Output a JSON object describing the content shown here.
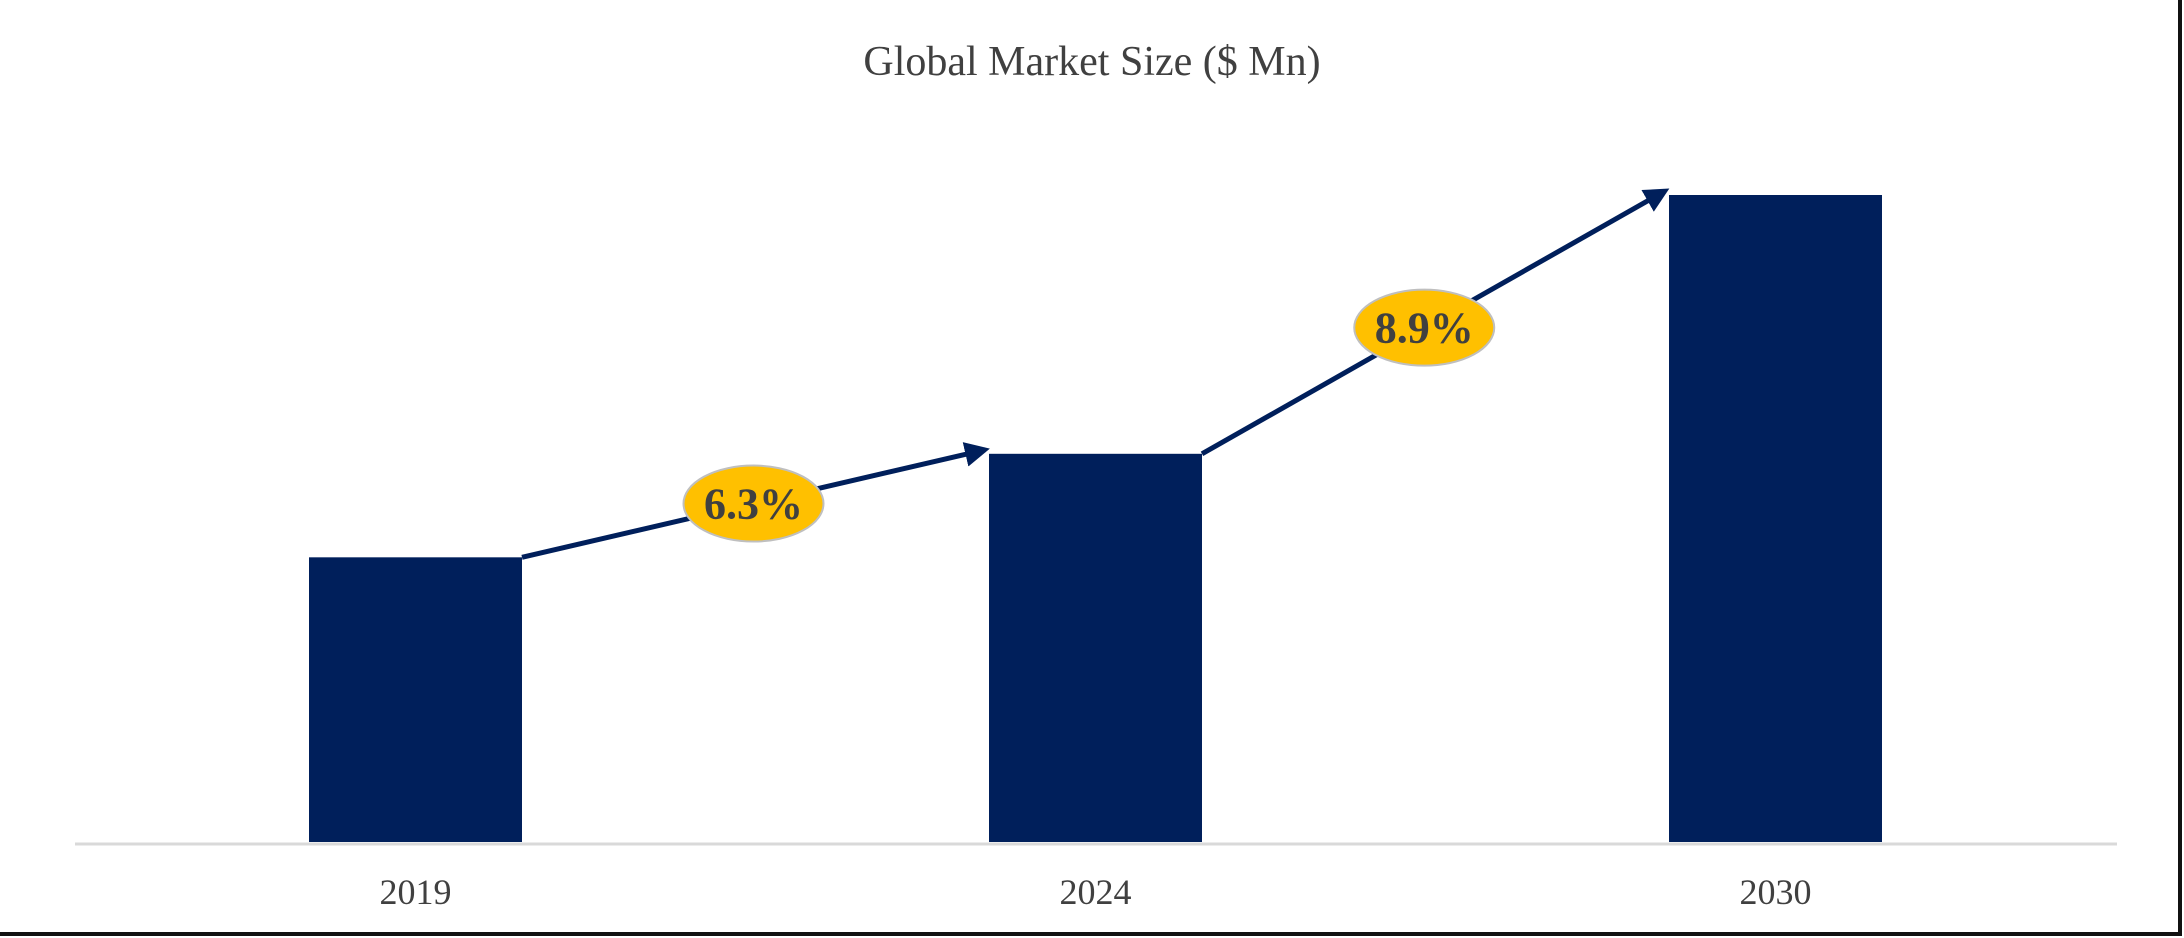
{
  "chart_data": {
    "type": "bar",
    "title": "Global Market Size ($ Mn)",
    "xlabel": "",
    "ylabel": "",
    "categories": [
      "2019",
      "2024",
      "2030"
    ],
    "values": [
      44,
      60,
      100
    ],
    "value_note_relative": true,
    "grid": false,
    "legend": "none",
    "bar_color": "#001F5B",
    "annotations": [
      {
        "from": "2019",
        "to": "2024",
        "label": "6.3%"
      },
      {
        "from": "2024",
        "to": "2030",
        "label": "8.9%"
      }
    ],
    "annotation_color": "#FFC000"
  }
}
